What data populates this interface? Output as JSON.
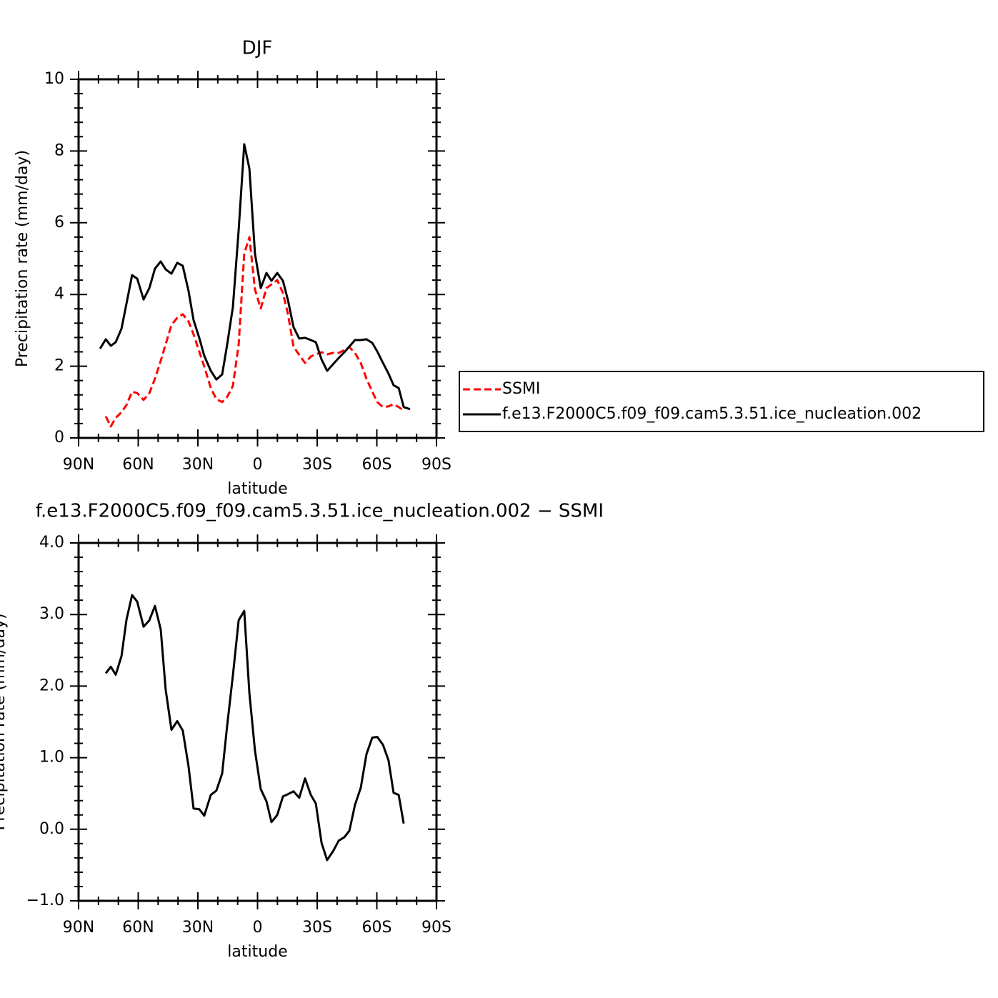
{
  "chart_data": [
    {
      "type": "line",
      "title": "DJF",
      "xlabel": "latitude",
      "ylabel": "Precipitation rate (mm/day)",
      "xlim": [
        90,
        -90
      ],
      "xticks": [
        {
          "value": 90,
          "label": "90N"
        },
        {
          "value": 60,
          "label": "60N"
        },
        {
          "value": 30,
          "label": "30N"
        },
        0,
        {
          "value": -30,
          "label": "30S"
        },
        {
          "value": -60,
          "label": "60S"
        },
        {
          "value": -90,
          "label": "90S"
        }
      ],
      "ylim": [
        0,
        10
      ],
      "yticks": [
        0,
        2,
        4,
        6,
        8,
        10
      ],
      "legend": "right",
      "x": [
        79.2,
        76.3,
        73.8,
        71.3,
        68.4,
        65.9,
        63.1,
        60.5,
        57.3,
        54.4,
        51.6,
        48.7,
        46.2,
        43.3,
        40.4,
        37.6,
        34.7,
        32.2,
        29.3,
        26.8,
        23.5,
        20.7,
        17.8,
        15.3,
        12.4,
        9.5,
        6.7,
        4.1,
        1.3,
        -1.6,
        -4.5,
        -7.0,
        -9.9,
        -12.8,
        -15.3,
        -18.1,
        -21.0,
        -23.9,
        -26.8,
        -29.3,
        -32.2,
        -35.0,
        -37.9,
        -40.8,
        -43.7,
        -46.2,
        -49.0,
        -51.9,
        -54.8,
        -57.7,
        -60.2,
        -63.1,
        -65.9,
        -68.4,
        -71.0,
        -73.5,
        -76.7
      ],
      "series": [
        {
          "name": "SSMI",
          "color": "#ff0000",
          "dash": true,
          "values": [
            null,
            0.6,
            0.32,
            0.56,
            0.72,
            0.92,
            1.29,
            1.25,
            1.06,
            1.25,
            1.65,
            2.15,
            2.61,
            3.15,
            3.35,
            3.45,
            3.25,
            2.89,
            2.41,
            1.99,
            1.39,
            1.08,
            1.0,
            1.14,
            1.45,
            2.61,
            5.14,
            5.6,
            4.14,
            3.61,
            4.18,
            4.28,
            4.4,
            4.04,
            3.45,
            2.55,
            2.31,
            2.09,
            2.27,
            2.33,
            2.39,
            2.33,
            2.37,
            2.37,
            2.45,
            2.53,
            2.37,
            2.09,
            1.65,
            1.29,
            1.0,
            0.86,
            0.88,
            0.94,
            0.86,
            0.76,
            null
          ]
        },
        {
          "name": "f.e13.F2000C5.f09_f09.cam5.3.51.ice_nucleation.002",
          "color": "#000000",
          "dash": false,
          "values": [
            2.49,
            2.75,
            2.57,
            2.67,
            3.05,
            3.75,
            4.54,
            4.44,
            3.86,
            4.18,
            4.72,
            4.92,
            4.7,
            4.58,
            4.88,
            4.8,
            4.1,
            3.29,
            2.79,
            2.29,
            1.87,
            1.63,
            1.77,
            2.59,
            3.65,
            5.8,
            8.19,
            7.51,
            5.14,
            4.18,
            4.6,
            4.38,
            4.6,
            4.38,
            3.84,
            3.09,
            2.77,
            2.79,
            2.73,
            2.67,
            2.19,
            1.87,
            2.05,
            2.23,
            2.39,
            2.55,
            2.73,
            2.73,
            2.75,
            2.65,
            2.41,
            2.09,
            1.79,
            1.47,
            1.39,
            0.86,
            0.8
          ]
        }
      ]
    },
    {
      "type": "line",
      "title": "f.e13.F2000C5.f09_f09.cam5.3.51.ice_nucleation.002 − SSMI",
      "xlabel": "latitude",
      "ylabel": "Precipitation rate (mm/day)",
      "xlim": [
        90,
        -90
      ],
      "xticks": [
        {
          "value": 90,
          "label": "90N"
        },
        {
          "value": 60,
          "label": "60N"
        },
        {
          "value": 30,
          "label": "30N"
        },
        0,
        {
          "value": -30,
          "label": "30S"
        },
        {
          "value": -60,
          "label": "60S"
        },
        {
          "value": -90,
          "label": "90S"
        }
      ],
      "ylim": [
        -1,
        4
      ],
      "yticks": [
        {
          "value": -1,
          "label": "−1.0"
        },
        {
          "value": 0,
          "label": "0.0"
        },
        {
          "value": 1,
          "label": "1.0"
        },
        {
          "value": 2,
          "label": "2.0"
        },
        {
          "value": 3,
          "label": "3.0"
        },
        {
          "value": 4,
          "label": "4.0"
        }
      ],
      "x": [
        76.3,
        73.8,
        71.3,
        68.4,
        65.9,
        63.1,
        60.5,
        57.3,
        54.4,
        51.6,
        48.7,
        46.2,
        43.3,
        40.4,
        37.6,
        34.7,
        32.2,
        29.3,
        26.8,
        23.5,
        20.7,
        17.8,
        15.3,
        12.4,
        9.5,
        6.7,
        4.1,
        1.3,
        -1.6,
        -4.5,
        -7.0,
        -9.9,
        -12.8,
        -15.3,
        -18.1,
        -21.0,
        -23.9,
        -26.8,
        -29.3,
        -32.2,
        -35.0,
        -37.9,
        -40.8,
        -43.7,
        -46.2,
        -49.0,
        -51.9,
        -54.8,
        -57.7,
        -60.2,
        -63.1,
        -65.9,
        -68.4,
        -71.0,
        -73.5
      ],
      "series": [
        {
          "color": "#000000",
          "dash": false,
          "values": [
            2.18,
            2.27,
            2.16,
            2.42,
            2.93,
            3.27,
            3.18,
            2.83,
            2.92,
            3.12,
            2.79,
            1.95,
            1.39,
            1.51,
            1.38,
            0.88,
            0.29,
            0.28,
            0.19,
            0.48,
            0.54,
            0.78,
            1.44,
            2.15,
            2.92,
            3.05,
            1.9,
            1.1,
            0.56,
            0.39,
            0.1,
            0.2,
            0.46,
            0.49,
            0.53,
            0.44,
            0.71,
            0.48,
            0.36,
            -0.19,
            -0.43,
            -0.31,
            -0.16,
            -0.11,
            -0.02,
            0.34,
            0.58,
            1.05,
            1.28,
            1.29,
            1.18,
            0.96,
            0.51,
            0.48,
            0.08
          ]
        }
      ]
    }
  ]
}
